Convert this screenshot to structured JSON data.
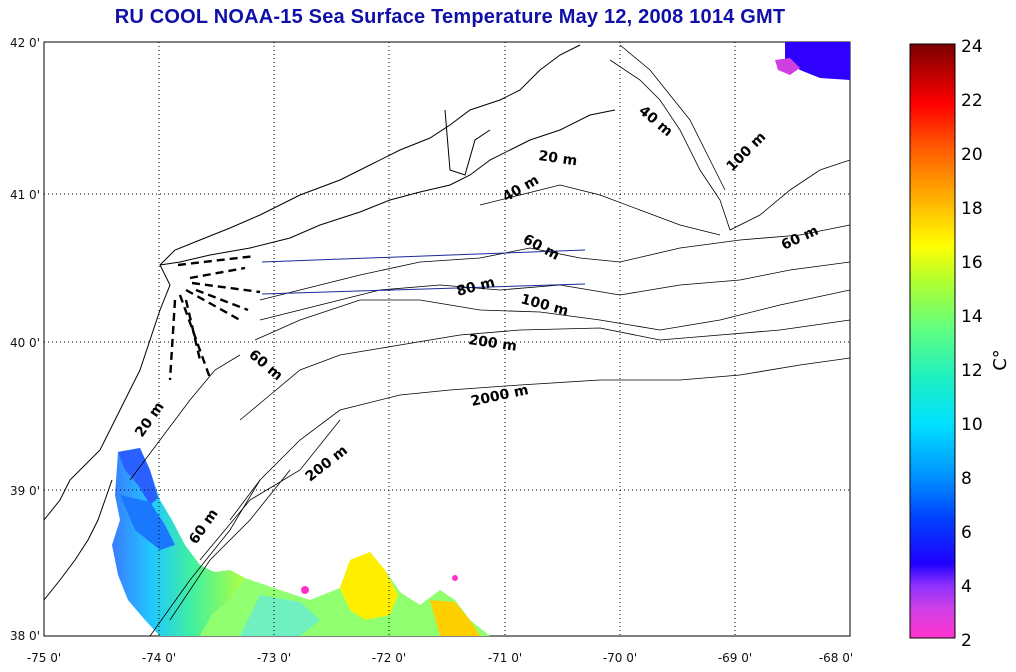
{
  "title": "RU COOL  NOAA-15 Sea Surface Temperature May 12, 2008 1014 GMT",
  "lat_labels": [
    "42 0'",
    "41 0'",
    "40 0'",
    "39 0'",
    "38 0'"
  ],
  "lon_labels": [
    "-75 0'",
    "-74 0'",
    "-73 0'",
    "-72 0'",
    "-71 0'",
    "-70 0'",
    "-69 0'",
    "-68 0'"
  ],
  "contour_labels": {
    "c40a": "40 m",
    "c20a": "20 m",
    "c100a": "100 m",
    "c40b": "40 m",
    "c60a": "60 m",
    "c60b": "60 m",
    "c80": "80 m",
    "c100b": "100 m",
    "c200a": "200 m",
    "c60c": "60 m",
    "c2000": "2000 m",
    "c20b": "20 m",
    "c200b": "200 m",
    "c60d": "60 m"
  },
  "colorbar": {
    "ticks": [
      "24",
      "22",
      "20",
      "18",
      "16",
      "14",
      "12",
      "10",
      "8",
      "6",
      "4",
      "2"
    ],
    "unit": "C°"
  },
  "colors": {
    "title": "#1010a8",
    "cold": "#0000ff",
    "warm": "#ffff00",
    "magenta": "#ff33cc"
  }
}
